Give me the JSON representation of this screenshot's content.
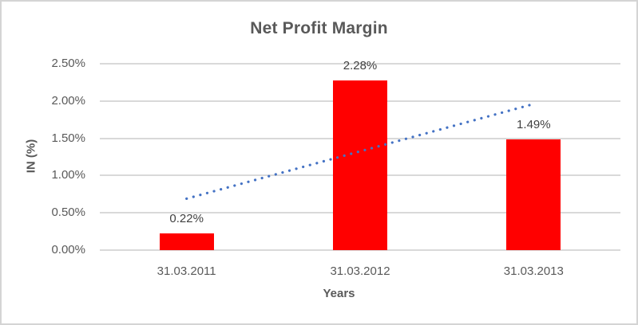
{
  "chart_data": {
    "type": "bar",
    "title": "Net Profit Margin",
    "xlabel": "Years",
    "ylabel": "IN (%)",
    "categories": [
      "31.03.2011",
      "31.03.2012",
      "31.03.2013"
    ],
    "values": [
      0.22,
      2.28,
      1.49
    ],
    "data_labels": [
      "0.22%",
      "2.28%",
      "1.49%"
    ],
    "ylim": [
      0,
      2.5
    ],
    "yticks": [
      {
        "value": 0.0,
        "label": "0.00%"
      },
      {
        "value": 0.5,
        "label": "0.50%"
      },
      {
        "value": 1.0,
        "label": "1.00%"
      },
      {
        "value": 1.5,
        "label": "1.50%"
      },
      {
        "value": 2.0,
        "label": "2.00%"
      },
      {
        "value": 2.5,
        "label": "2.50%"
      }
    ],
    "grid": true,
    "legend_position": "none",
    "bar_color": "#ff0000",
    "trendline": {
      "type": "linear",
      "style": "dotted",
      "color": "#4472c4",
      "start_value": 0.69,
      "end_value": 1.96
    }
  },
  "colors": {
    "text": "#595959",
    "gridline": "#d9d9d9",
    "border": "#d4d4d4",
    "background": "#ffffff"
  }
}
